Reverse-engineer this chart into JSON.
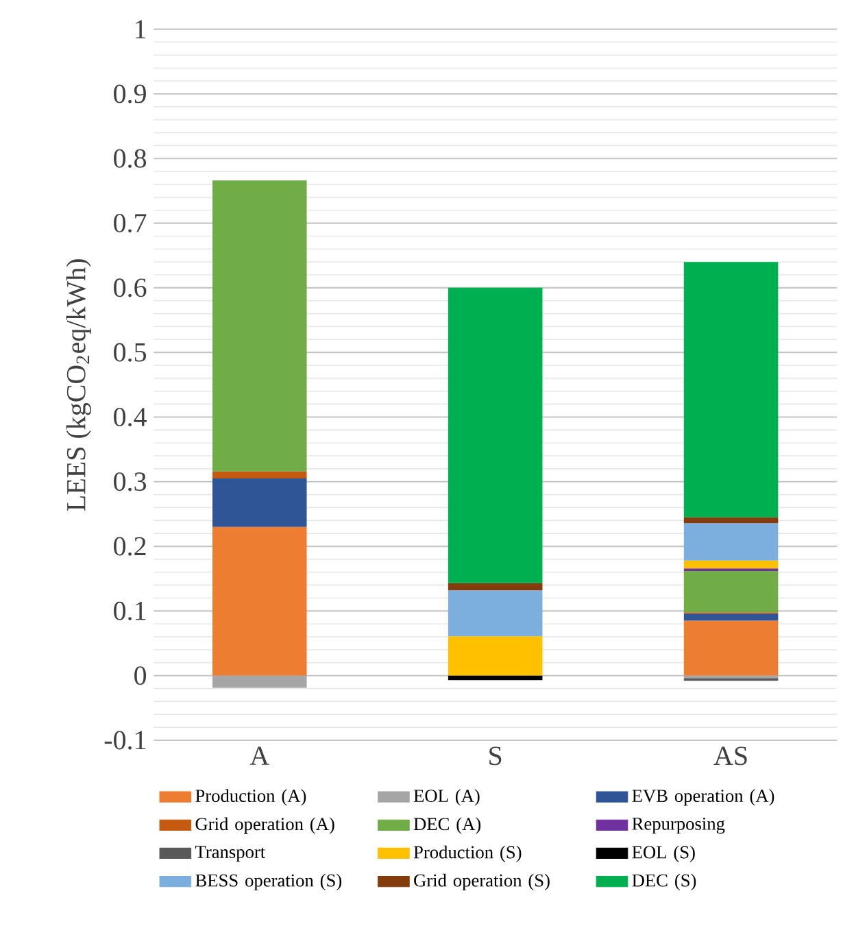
{
  "chart_data": {
    "type": "bar",
    "stacked": true,
    "ylabel": "LEES (kgCO$_{2}$eq/kWh)",
    "categories": [
      "A",
      "S",
      "AS"
    ],
    "series": [
      {
        "name": "Production (A)",
        "color": "#ed7d31",
        "values": [
          0.23,
          0,
          0.085
        ]
      },
      {
        "name": "EOL (A)",
        "color": "#a5a5a5",
        "values": [
          -0.019,
          0,
          -0.004
        ]
      },
      {
        "name": "EVB operation (A)",
        "color": "#2f5597",
        "values": [
          0.075,
          0,
          0.011
        ]
      },
      {
        "name": "Grid operation (A)",
        "color": "#c55a11",
        "values": [
          0.011,
          0,
          0.002
        ]
      },
      {
        "name": "DEC (A)",
        "color": "#70ad47",
        "values": [
          0.45,
          0,
          0.064
        ]
      },
      {
        "name": "Repurposing",
        "color": "#7030a0",
        "values": [
          0,
          0,
          0.004
        ]
      },
      {
        "name": "Transport",
        "color": "#595959",
        "values": [
          0,
          0,
          -0.004
        ]
      },
      {
        "name": "Production (S)",
        "color": "#ffc000",
        "values": [
          0,
          0.061,
          0.012
        ]
      },
      {
        "name": "EOL (S)",
        "color": "#000000",
        "values": [
          0,
          -0.007,
          0
        ]
      },
      {
        "name": "BESS operation (S)",
        "color": "#7cafdd",
        "values": [
          0,
          0.071,
          0.058
        ]
      },
      {
        "name": "Grid operation (S)",
        "color": "#843c0c",
        "values": [
          0,
          0.011,
          0.009
        ]
      },
      {
        "name": "DEC (S)",
        "color": "#00b050",
        "values": [
          0,
          0.457,
          0.395
        ]
      }
    ],
    "ylim": [
      -0.1,
      1
    ],
    "yticks": [
      -0.1,
      0,
      0.1,
      0.2,
      0.3,
      0.4,
      0.5,
      0.6,
      0.7,
      0.8,
      0.9,
      1
    ],
    "grid": "y",
    "legend": "bottom"
  }
}
